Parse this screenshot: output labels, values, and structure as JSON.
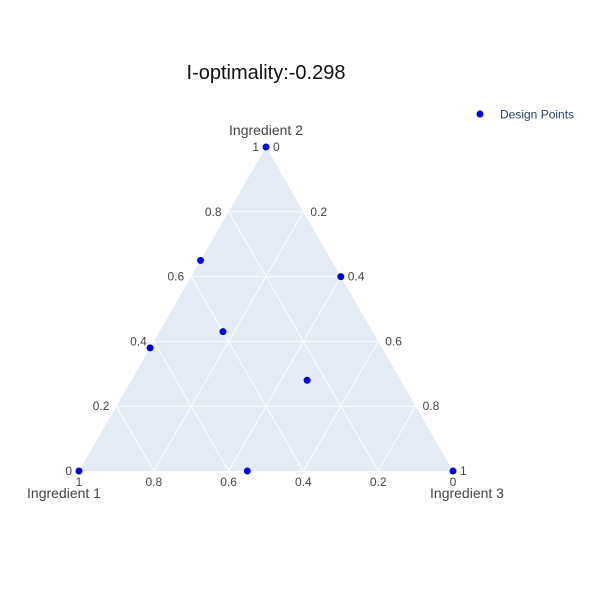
{
  "chart_data": {
    "type": "scatter",
    "subtype": "ternary",
    "title": "I-optimality:-0.298",
    "axes": {
      "a": {
        "title": "Ingredient 1",
        "range": [
          0,
          1
        ]
      },
      "b": {
        "title": "Ingredient 2",
        "range": [
          0,
          1
        ]
      },
      "c": {
        "title": "Ingredient 3",
        "range": [
          0,
          1
        ]
      }
    },
    "ticks": {
      "a": [
        "0",
        "0.2",
        "0.4",
        "0.6",
        "0.8",
        "1"
      ],
      "b": [
        "0",
        "0.2",
        "0.4",
        "0.6",
        "0.8",
        "1"
      ],
      "c": [
        "0",
        "0.2",
        "0.4",
        "0.6",
        "0.8",
        "1"
      ]
    },
    "tick_values": [
      0,
      0.2,
      0.4,
      0.6,
      0.8,
      1
    ],
    "grid": true,
    "legend": {
      "position": "top-right",
      "entries": [
        "Design Points"
      ]
    },
    "colors": {
      "points": "#0000dd",
      "plot_bg": "#e5ecf6",
      "grid": "#ffffff"
    },
    "series": [
      {
        "name": "Design Points",
        "points": [
          {
            "a": 0.0,
            "b": 1.0,
            "c": 0.0
          },
          {
            "a": 0.35,
            "b": 0.65,
            "c": 0.0
          },
          {
            "a": 0.0,
            "b": 0.6,
            "c": 0.4
          },
          {
            "a": 0.62,
            "b": 0.38,
            "c": 0.0
          },
          {
            "a": 0.4,
            "b": 0.43,
            "c": 0.17
          },
          {
            "a": 0.25,
            "b": 0.28,
            "c": 0.47
          },
          {
            "a": 1.0,
            "b": 0.0,
            "c": 0.0
          },
          {
            "a": 0.55,
            "b": 0.0,
            "c": 0.45
          },
          {
            "a": 0.0,
            "b": 0.0,
            "c": 1.0
          }
        ]
      }
    ]
  }
}
